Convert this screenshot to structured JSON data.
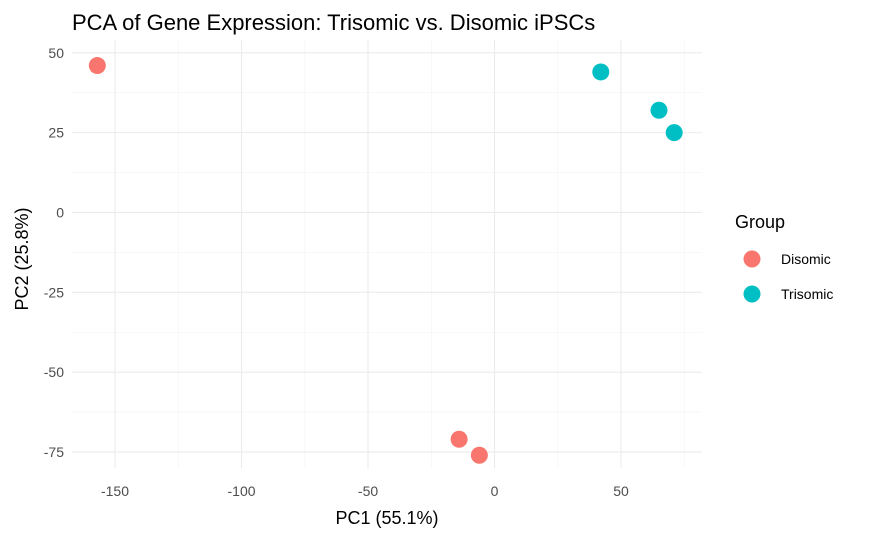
{
  "chart_data": {
    "type": "scatter",
    "title": "PCA of Gene Expression: Trisomic vs. Disomic iPSCs",
    "xlabel": "PC1 (55.1%)",
    "ylabel": "PC2 (25.8%)",
    "xlim": [
      -167,
      82
    ],
    "ylim": [
      -80,
      54
    ],
    "x_ticks": [
      -150,
      -100,
      -50,
      0,
      50
    ],
    "y_ticks": [
      -75,
      -50,
      -25,
      0,
      25,
      50
    ],
    "grid": true,
    "legend": {
      "title": "Group",
      "position": "right",
      "entries": [
        "Disomic",
        "Trisomic"
      ]
    },
    "series": [
      {
        "name": "Disomic",
        "color": "#F8766D",
        "points": [
          {
            "x": -157,
            "y": 46
          },
          {
            "x": -14,
            "y": -71
          },
          {
            "x": -6,
            "y": -76
          }
        ]
      },
      {
        "name": "Trisomic",
        "color": "#00BFC4",
        "points": [
          {
            "x": 42,
            "y": 44
          },
          {
            "x": 65,
            "y": 32
          },
          {
            "x": 71,
            "y": 25
          }
        ]
      }
    ]
  }
}
